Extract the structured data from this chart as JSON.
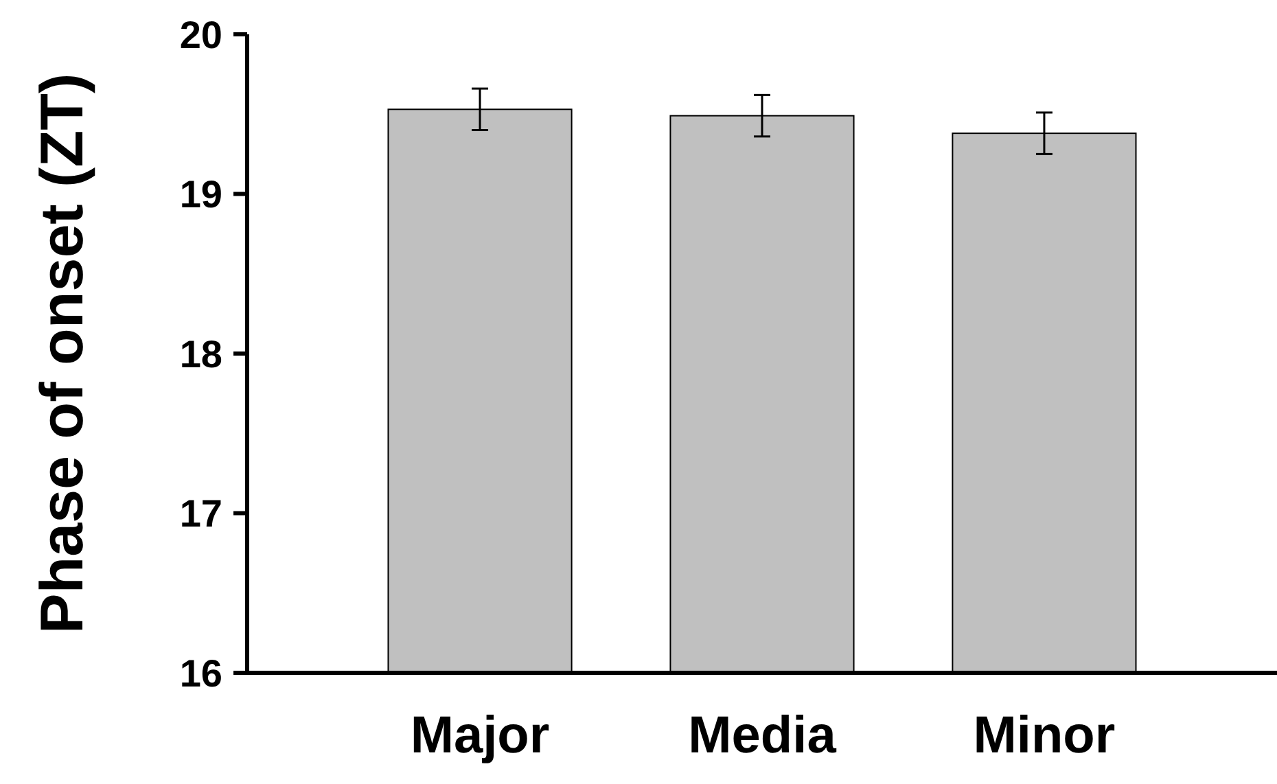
{
  "chart_data": {
    "type": "bar",
    "ylabel": "Phase of onset (ZT)",
    "categories": [
      "Major",
      "Media",
      "Minor"
    ],
    "values": [
      19.53,
      19.49,
      19.38
    ],
    "errors": [
      0.13,
      0.13,
      0.13
    ],
    "color": "#c0c0c0",
    "ylim": [
      16,
      20
    ],
    "yticks": [
      16,
      17,
      18,
      19,
      20
    ],
    "grid": false
  }
}
